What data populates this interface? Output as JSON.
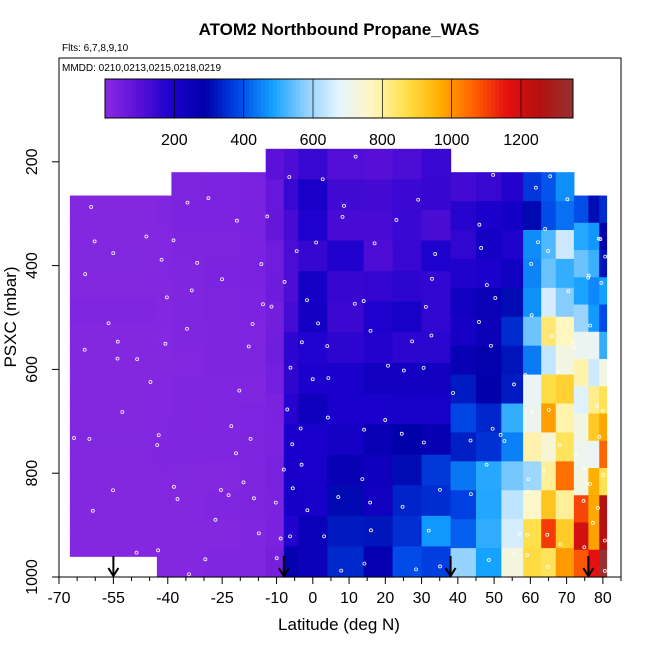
{
  "chart_data": {
    "type": "heatmap",
    "title": "ATOM2 Northbound Propane_WAS",
    "subtitle_flights": "Flts: 6,7,8,9,10",
    "subtitle_dates": "MMDD: 0210,0213,0215,0218,0219",
    "xlabel": "Latitude (deg N)",
    "ylabel": "PSXC (mbar)",
    "xlim": [
      -70,
      85
    ],
    "ylim": [
      1000,
      0
    ],
    "x_ticks": [
      "-70",
      "-55",
      "-40",
      "-25",
      "-10",
      "0",
      "10",
      "20",
      "30",
      "40",
      "50",
      "60",
      "70",
      "80"
    ],
    "x_tick_values": [
      -70,
      -55,
      -40,
      -25,
      -10,
      0,
      10,
      20,
      30,
      40,
      50,
      60,
      70,
      80
    ],
    "y_ticks": [
      "200",
      "400",
      "600",
      "800",
      "1000"
    ],
    "y_tick_values": [
      200,
      400,
      600,
      800,
      1000
    ],
    "colorbar": {
      "ticks": [
        "200",
        "400",
        "600",
        "800",
        "1000",
        "1200"
      ],
      "tick_values": [
        200,
        400,
        600,
        800,
        1000,
        1200
      ],
      "range": [
        0,
        1350
      ],
      "colors": [
        "#8a2be2",
        "#5a10d8",
        "#1a00cc",
        "#0000aa",
        "#0048e8",
        "#12a0ff",
        "#8fd0ff",
        "#e6f4ff",
        "#fff6c0",
        "#ffe04a",
        "#ffb000",
        "#ff6400",
        "#e61010",
        "#b41010",
        "#963232"
      ]
    },
    "profile_latitudes": [
      -55,
      -8,
      38,
      76
    ],
    "columns": [
      {
        "lat": [
          -67,
          -43
        ],
        "p": [
          265,
          960
        ],
        "values": [
          15
        ]
      },
      {
        "lat": [
          -43,
          -39
        ],
        "p": [
          265,
          1000
        ],
        "values": [
          15
        ]
      },
      {
        "lat": [
          -39,
          -30
        ],
        "p": [
          220,
          1000
        ],
        "values": [
          25,
          20,
          15
        ]
      },
      {
        "lat": [
          -30,
          -20
        ],
        "p": [
          220,
          1000
        ],
        "values": [
          30,
          20,
          15
        ]
      },
      {
        "lat": [
          -20,
          -13
        ],
        "p": [
          220,
          1000
        ],
        "values": [
          40,
          25,
          20
        ]
      },
      {
        "lat": [
          -13,
          -8
        ],
        "p": [
          175,
          1000
        ],
        "values": [
          80,
          60,
          40,
          30,
          40
        ]
      },
      {
        "lat": [
          -8,
          -4
        ],
        "p": [
          175,
          1000
        ],
        "values": [
          140,
          120,
          150,
          200,
          230
        ]
      },
      {
        "lat": [
          -4,
          4
        ],
        "p": [
          175,
          1000
        ],
        "values": [
          170,
          190,
          230,
          230,
          260
        ]
      },
      {
        "lat": [
          4,
          14
        ],
        "p": [
          175,
          1000
        ],
        "values": [
          110,
          170,
          170,
          230,
          300
        ]
      },
      {
        "lat": [
          14,
          22
        ],
        "p": [
          175,
          1000
        ],
        "values": [
          120,
          140,
          210,
          250,
          330
        ]
      },
      {
        "lat": [
          22,
          30
        ],
        "p": [
          175,
          1000
        ],
        "values": [
          110,
          150,
          190,
          260,
          380
        ]
      },
      {
        "lat": [
          30,
          38
        ],
        "p": [
          175,
          1000
        ],
        "values": [
          130,
          160,
          190,
          310,
          450
        ]
      },
      {
        "lat": [
          38,
          45
        ],
        "p": [
          220,
          1000
        ],
        "values": [
          150,
          180,
          250,
          400,
          520
        ]
      },
      {
        "lat": [
          45,
          52
        ],
        "p": [
          220,
          1000
        ],
        "values": [
          150,
          230,
          300,
          430,
          560
        ]
      },
      {
        "lat": [
          52,
          58
        ],
        "p": [
          220,
          1000
        ],
        "values": [
          160,
          260,
          380,
          520,
          650
        ]
      },
      {
        "lat": [
          58,
          63
        ],
        "p": [
          220,
          1000
        ],
        "values": [
          320,
          440,
          560,
          700,
          820
        ]
      },
      {
        "lat": [
          63,
          67
        ],
        "p": [
          220,
          1000
        ],
        "values": [
          420,
          620,
          800,
          900,
          950
        ]
      },
      {
        "lat": [
          67,
          72
        ],
        "p": [
          220,
          1000
        ],
        "values": [
          460,
          640,
          760,
          900,
          1000
        ]
      },
      {
        "lat": [
          72,
          76
        ],
        "p": [
          265,
          1000
        ],
        "values": [
          380,
          560,
          740,
          880,
          1060
        ]
      },
      {
        "lat": [
          76,
          79
        ],
        "p": [
          265,
          1000
        ],
        "values": [
          340,
          520,
          720,
          860,
          1120
        ]
      },
      {
        "lat": [
          79,
          81
        ],
        "p": [
          265,
          1000
        ],
        "values": [
          300,
          420,
          680,
          980,
          1280
        ]
      }
    ]
  }
}
